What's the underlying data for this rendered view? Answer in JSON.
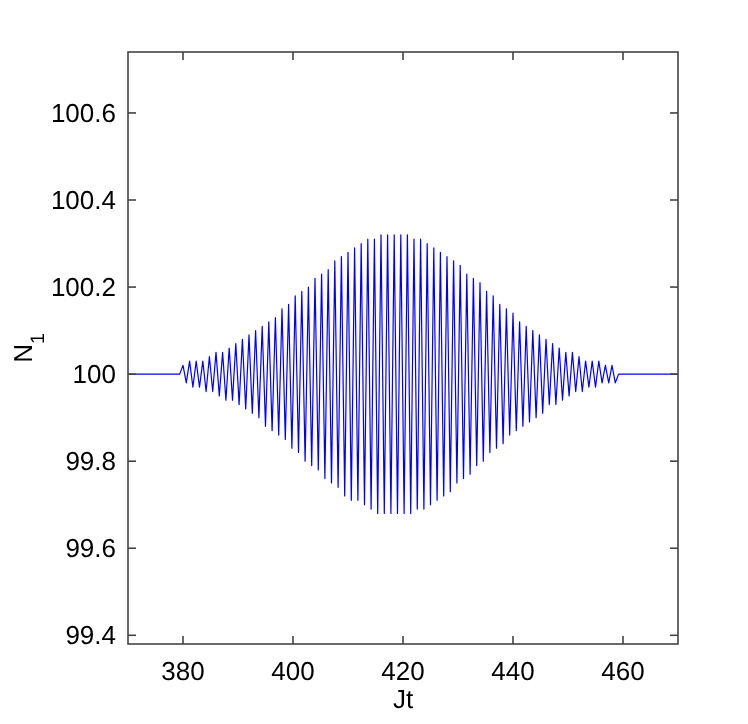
{
  "chart_data": {
    "type": "line",
    "xlabel": "Jt",
    "ylabel": "N$_{1}$",
    "xlim": [
      370,
      470
    ],
    "ylim": [
      99.38,
      100.74
    ],
    "xticks": [
      380,
      400,
      420,
      440,
      460
    ],
    "yticks": [
      99.4,
      99.6,
      99.8,
      100,
      100.2,
      100.4,
      100.6
    ],
    "grid": false,
    "marker": "none",
    "line_style": "solid",
    "series": [
      {
        "color": "#0000ff",
        "x": [
          370,
          379.4,
          380,
          380.6,
          381.2,
          381.8,
          382.4,
          383,
          383.6,
          384.2,
          384.8,
          385.4,
          386,
          386.6,
          387.2,
          387.8,
          388.4,
          389,
          389.6,
          390.2,
          390.8,
          391.4,
          392,
          392.6,
          393.2,
          393.8,
          394.4,
          395,
          395.6,
          396.2,
          396.8,
          397.4,
          398,
          398.6,
          399.2,
          399.8,
          400.4,
          401,
          401.6,
          402.2,
          402.8,
          403.4,
          404,
          404.6,
          405.2,
          405.8,
          406.4,
          407,
          407.6,
          408.2,
          408.8,
          409.4,
          410,
          410.6,
          411.2,
          411.8,
          412.4,
          413,
          413.6,
          414.2,
          414.8,
          415.4,
          416,
          416.6,
          417.2,
          417.8,
          418.4,
          419,
          419.6,
          420.2,
          420.8,
          421.4,
          422,
          422.6,
          423.2,
          423.8,
          424.4,
          425,
          425.6,
          426.2,
          426.8,
          427.4,
          428,
          428.6,
          429.2,
          429.8,
          430.4,
          431,
          431.6,
          432.2,
          432.8,
          433.4,
          434,
          434.6,
          435.2,
          435.8,
          436.4,
          437,
          437.6,
          438.2,
          438.8,
          439.4,
          440,
          440.6,
          441.2,
          441.8,
          442.4,
          443,
          443.6,
          444.2,
          444.8,
          445.4,
          446,
          446.6,
          447.2,
          447.8,
          448.4,
          449,
          449.6,
          450.2,
          450.8,
          451.4,
          452,
          452.6,
          453.2,
          453.8,
          454.4,
          455,
          455.6,
          456.2,
          456.8,
          457.4,
          458,
          458.6,
          459.2,
          470
        ],
        "values": [
          100,
          100,
          100.02,
          99.98,
          100.03,
          99.97,
          100.03,
          99.97,
          100.03,
          99.96,
          100.04,
          99.96,
          100.05,
          99.95,
          100.05,
          99.94,
          100.06,
          99.94,
          100.07,
          99.93,
          100.08,
          99.92,
          100.09,
          99.91,
          100.1,
          99.9,
          100.11,
          99.88,
          100.12,
          99.87,
          100.13,
          99.86,
          100.15,
          99.85,
          100.16,
          99.83,
          100.18,
          99.82,
          100.19,
          99.8,
          100.2,
          99.79,
          100.22,
          99.78,
          100.23,
          99.76,
          100.24,
          99.75,
          100.26,
          99.74,
          100.27,
          99.72,
          100.28,
          99.71,
          100.29,
          99.71,
          100.3,
          99.7,
          100.31,
          99.69,
          100.31,
          99.68,
          100.32,
          99.68,
          100.32,
          99.68,
          100.32,
          99.68,
          100.32,
          99.68,
          100.32,
          99.68,
          100.31,
          99.69,
          100.31,
          99.69,
          100.3,
          99.7,
          100.29,
          99.71,
          100.28,
          99.72,
          100.27,
          99.73,
          100.26,
          99.75,
          100.25,
          99.76,
          100.23,
          99.77,
          100.22,
          99.79,
          100.21,
          99.8,
          100.19,
          99.82,
          100.18,
          99.83,
          100.16,
          99.84,
          100.15,
          99.86,
          100.14,
          99.87,
          100.12,
          99.88,
          100.11,
          99.89,
          100.1,
          99.9,
          100.09,
          99.91,
          100.08,
          99.93,
          100.07,
          99.93,
          100.06,
          99.94,
          100.05,
          99.95,
          100.05,
          99.96,
          100.04,
          99.96,
          100.03,
          99.97,
          100.03,
          99.97,
          100.03,
          99.98,
          100.02,
          99.98,
          100.02,
          99.98,
          100,
          100
        ]
      }
    ]
  }
}
